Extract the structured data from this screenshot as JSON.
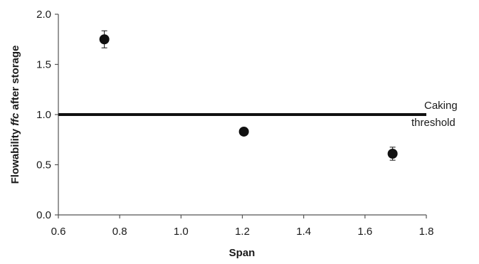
{
  "chart_data": {
    "type": "scatter",
    "xlabel": "Span",
    "ylabel_parts": [
      "Flowability ",
      "ffc",
      " after storage"
    ],
    "xlim": [
      0.6,
      1.8
    ],
    "ylim": [
      0.0,
      2.0
    ],
    "xticks": [
      "0.6",
      "0.8",
      "1.0",
      "1.2",
      "1.4",
      "1.6",
      "1.8"
    ],
    "yticks": [
      "0.0",
      "0.5",
      "1.0",
      "1.5",
      "2.0"
    ],
    "grid": false,
    "points": [
      {
        "x": 0.75,
        "y": 1.75,
        "err": 0.085
      },
      {
        "x": 1.205,
        "y": 0.83,
        "err": 0.0
      },
      {
        "x": 1.69,
        "y": 0.61,
        "err": 0.065
      }
    ],
    "threshold": {
      "y": 1.0,
      "label_lines": [
        "Caking",
        "threshold"
      ]
    },
    "colors": {
      "marker": "#111111",
      "line": "#111111",
      "axis": "#555555"
    }
  }
}
